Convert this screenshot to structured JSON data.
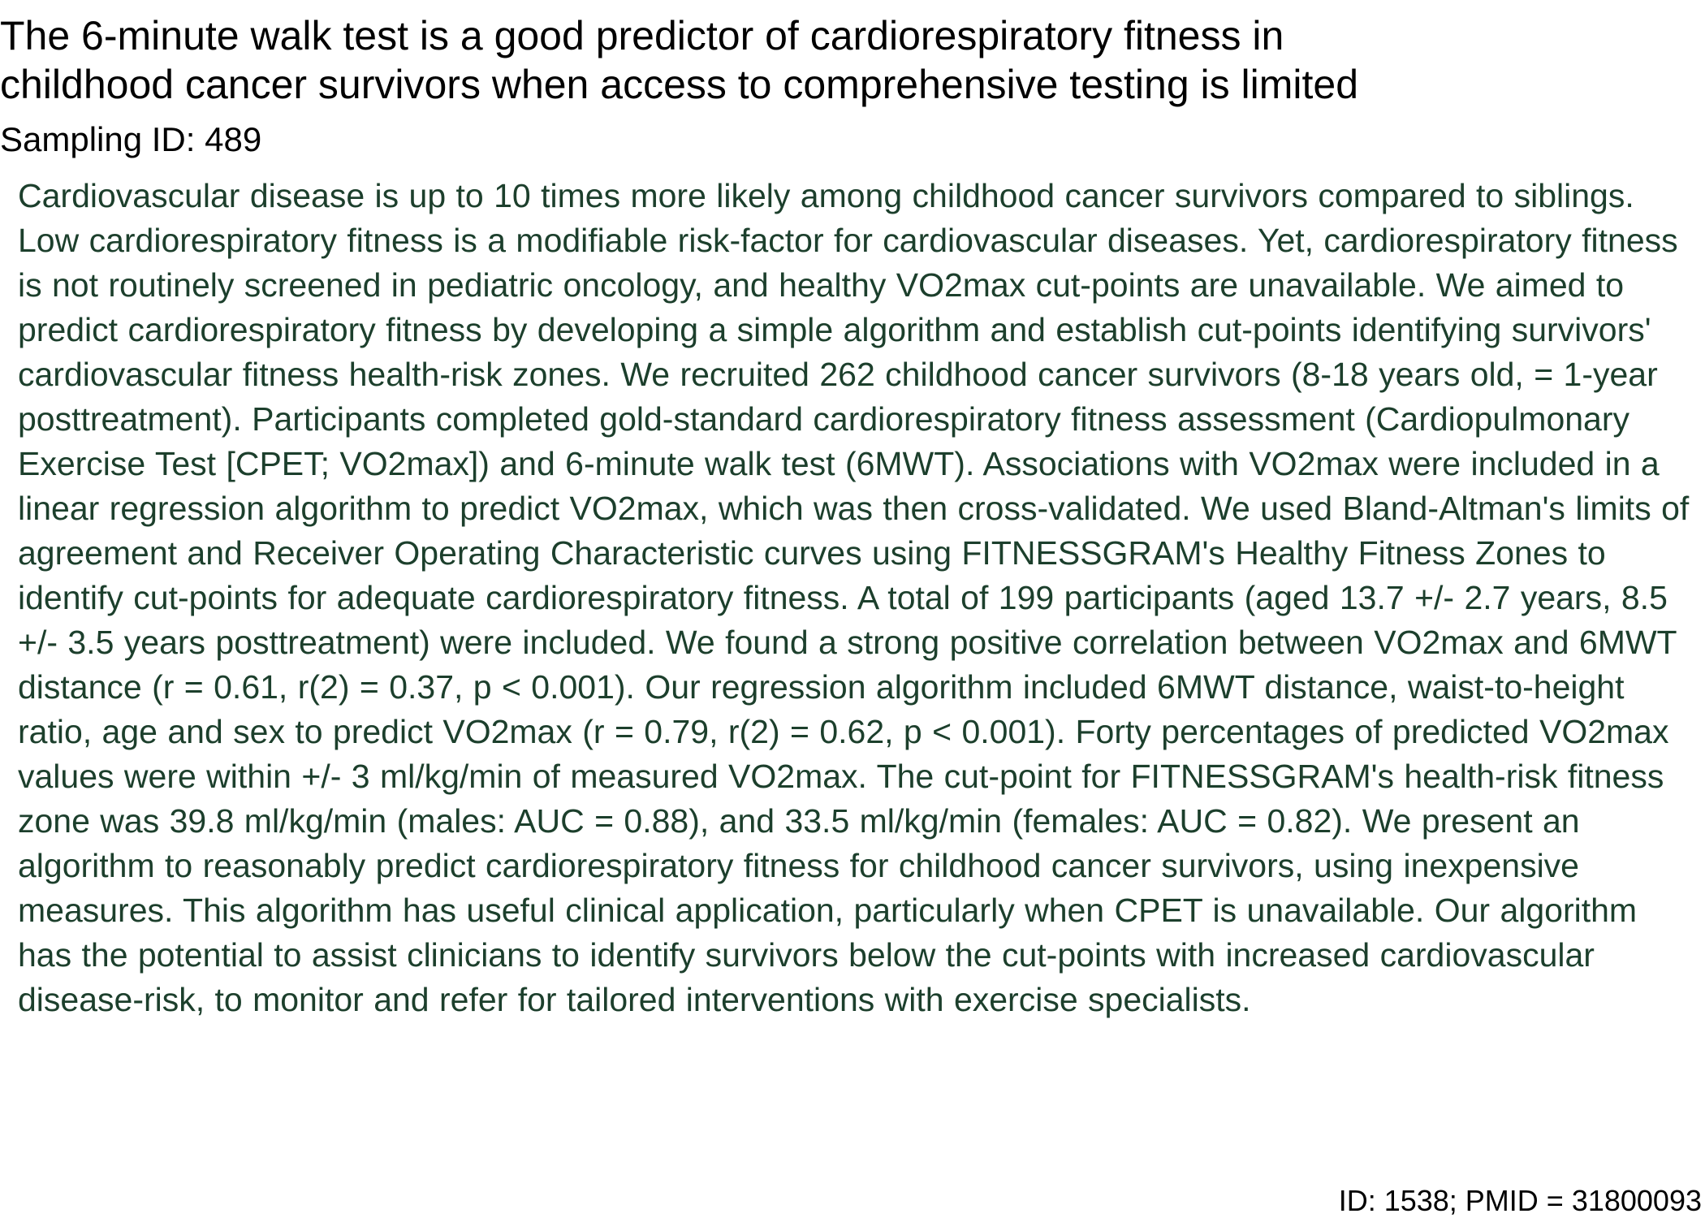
{
  "document": {
    "title_line1": "The 6-minute walk test is a good predictor of cardiorespiratory fitness in",
    "title_line2": "childhood cancer survivors when access to comprehensive testing is limited",
    "sampling_id": "Sampling ID: 489",
    "abstract": "Cardiovascular disease is up to 10 times more likely among childhood cancer survivors compared to siblings. Low cardiorespiratory fitness is a modifiable risk-factor for cardiovascular diseases. Yet, cardiorespiratory fitness is not routinely screened in pediatric oncology, and healthy VO2max cut-points are unavailable. We aimed to predict cardiorespiratory fitness by developing a simple algorithm and establish cut-points identifying survivors' cardiovascular fitness health-risk zones. We recruited 262 childhood cancer survivors (8-18 years old, = 1-year posttreatment). Participants completed gold-standard cardiorespiratory fitness assessment (Cardiopulmonary Exercise Test [CPET; VO2max]) and 6-minute walk test (6MWT). Associations with VO2max were included in a linear regression algorithm to predict VO2max, which was then cross-validated. We used Bland-Altman's limits of agreement and Receiver Operating Characteristic curves using FITNESSGRAM's Healthy Fitness Zones to identify cut-points for adequate cardiorespiratory fitness. A total of 199 participants (aged 13.7 +/- 2.7 years, 8.5 +/- 3.5 years posttreatment) were included. We found a strong positive correlation between VO2max and 6MWT distance (r = 0.61, r(2) = 0.37, p < 0.001). Our regression algorithm included 6MWT distance, waist-to-height ratio, age and sex to predict VO2max (r = 0.79, r(2) = 0.62, p < 0.001). Forty percentages of predicted VO2max values were within +/- 3 ml/kg/min of measured VO2max. The cut-point for FITNESSGRAM's health-risk fitness zone was 39.8 ml/kg/min (males: AUC = 0.88), and 33.5 ml/kg/min (females: AUC = 0.82). We present an algorithm to reasonably predict cardiorespiratory fitness for childhood cancer survivors, using inexpensive measures. This algorithm has useful clinical application, particularly when CPET is unavailable. Our algorithm has the potential to assist clinicians to identify survivors below the cut-points with increased cardiovascular disease-risk, to monitor and refer for tailored interventions with exercise specialists.",
    "footer_id": "ID: 1538; PMID = 31800093"
  },
  "colors": {
    "abstract_text": "#1c3f2c",
    "title_text": "#000000",
    "background": "#ffffff"
  }
}
